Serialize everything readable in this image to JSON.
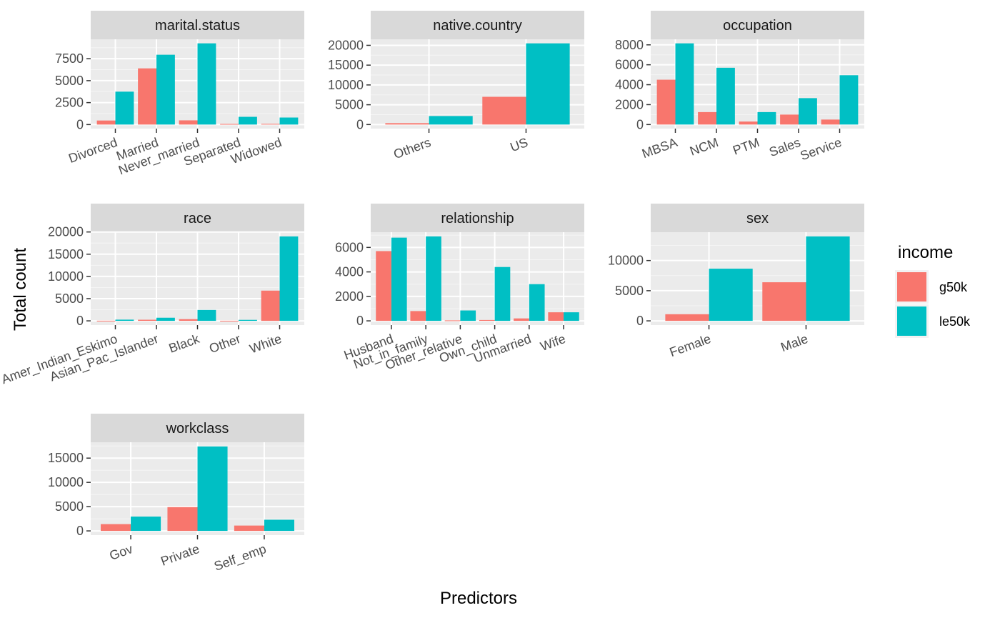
{
  "chart_data": {
    "type": "bar",
    "xlabel": "Predictors",
    "ylabel": "Total count",
    "legend": {
      "title": "income",
      "placement": "right",
      "entries": [
        {
          "name": "g50k",
          "color": "#F8766D"
        },
        {
          "name": "le50k",
          "color": "#00BFC4"
        }
      ]
    },
    "grid": true,
    "panels": [
      {
        "title": "marital.status",
        "categories": [
          "Divorced",
          "Married",
          "Never_married",
          "Separated",
          "Widowed"
        ],
        "series": [
          {
            "name": "g50k",
            "values": [
              460,
              6400,
              480,
              70,
              80
            ]
          },
          {
            "name": "le50k",
            "values": [
              3750,
              7950,
              9250,
              880,
              800
            ]
          }
        ],
        "yticks": [
          0,
          2500,
          5000,
          7500
        ],
        "ylim": [
          -460,
          9710
        ]
      },
      {
        "title": "native.country",
        "categories": [
          "Others",
          "US"
        ],
        "series": [
          {
            "name": "g50k",
            "values": [
              350,
              7000
            ]
          },
          {
            "name": "le50k",
            "values": [
              2150,
              20500
            ]
          }
        ],
        "yticks": [
          0,
          5000,
          10000,
          15000,
          20000
        ],
        "ylim": [
          -1025,
          21525
        ]
      },
      {
        "title": "occupation",
        "categories": [
          "MBSA",
          "NCM",
          "PTM",
          "Sales",
          "Service"
        ],
        "series": [
          {
            "name": "g50k",
            "values": [
              4500,
              1250,
              300,
              1000,
              500
            ]
          },
          {
            "name": "le50k",
            "values": [
              8150,
              5700,
              1250,
              2650,
              4950
            ]
          }
        ],
        "yticks": [
          0,
          2000,
          4000,
          6000,
          8000
        ],
        "ylim": [
          -407,
          8557
        ]
      },
      {
        "title": "race",
        "categories": [
          "Amer_Indian_Eskimo",
          "Asian_Pac_Islander",
          "Black",
          "Other",
          "White"
        ],
        "series": [
          {
            "name": "g50k",
            "values": [
              30,
              250,
              380,
              25,
              6800
            ]
          },
          {
            "name": "le50k",
            "values": [
              270,
              700,
              2450,
              220,
              19000
            ]
          }
        ],
        "yticks": [
          0,
          5000,
          10000,
          15000,
          20000
        ],
        "ylim": [
          -950,
          19950
        ]
      },
      {
        "title": "relationship",
        "categories": [
          "Husband",
          "Not_in_family",
          "Other_relative",
          "Own_child",
          "Unmarried",
          "Wife"
        ],
        "series": [
          {
            "name": "g50k",
            "values": [
              5700,
              800,
              40,
              70,
              200,
              700
            ]
          },
          {
            "name": "le50k",
            "values": [
              6800,
              6900,
              850,
              4400,
              3000,
              700
            ]
          }
        ],
        "yticks": [
          0,
          2000,
          4000,
          6000
        ],
        "ylim": [
          -345,
          7245
        ]
      },
      {
        "title": "sex",
        "categories": [
          "Female",
          "Male"
        ],
        "series": [
          {
            "name": "g50k",
            "values": [
              1100,
              6400
            ]
          },
          {
            "name": "le50k",
            "values": [
              8650,
              14000
            ]
          }
        ],
        "yticks": [
          0,
          5000,
          10000
        ],
        "ylim": [
          -700,
          14700
        ]
      },
      {
        "title": "workclass",
        "categories": [
          "Gov",
          "Private",
          "Self_emp"
        ],
        "series": [
          {
            "name": "g50k",
            "values": [
              1400,
              4900,
              1100
            ]
          },
          {
            "name": "le50k",
            "values": [
              2950,
              17400,
              2300
            ]
          }
        ],
        "yticks": [
          0,
          5000,
          10000,
          15000
        ],
        "ylim": [
          -870,
          18270
        ]
      }
    ]
  }
}
